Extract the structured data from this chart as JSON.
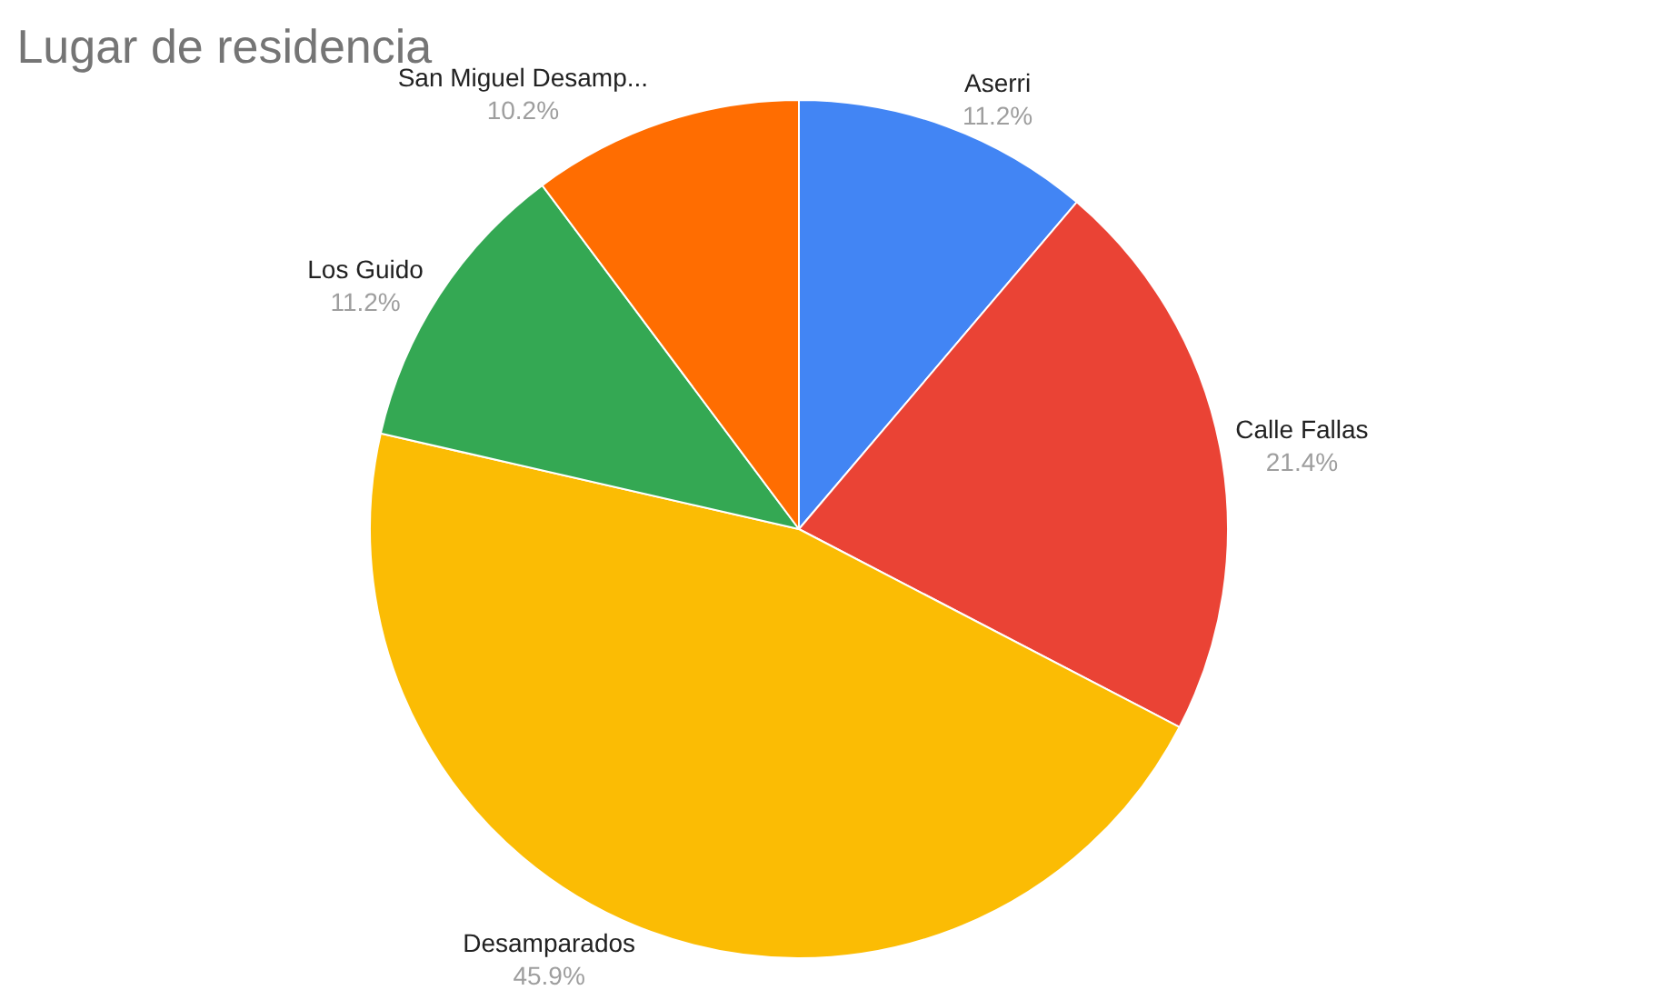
{
  "chart_data": {
    "type": "pie",
    "title": "Lugar de residencia",
    "categories": [
      "Aserri",
      "Calle Fallas",
      "Desamparados",
      "Los Guido",
      "San Miguel Desamp..."
    ],
    "values": [
      11.2,
      21.4,
      45.9,
      11.2,
      10.2
    ],
    "value_labels": [
      "11.2%",
      "21.4%",
      "45.9%",
      "11.2%",
      "10.2%"
    ],
    "colors": [
      "#4285f4",
      "#ea4335",
      "#fbbc04",
      "#34a853",
      "#ff6d01"
    ],
    "legend": false
  }
}
